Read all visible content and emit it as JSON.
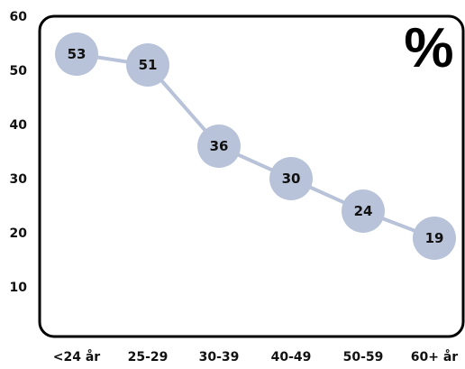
{
  "chart_data": {
    "type": "line",
    "categories": [
      "<24 år",
      "25-29",
      "30-39",
      "40-49",
      "50-59",
      "60+ år"
    ],
    "values": [
      53,
      51,
      36,
      30,
      24,
      19
    ],
    "unit_label": "%",
    "y_ticks": [
      "10",
      "20",
      "30",
      "40",
      "50",
      "60"
    ],
    "ylim": [
      0,
      60
    ],
    "grid": false,
    "colors": {
      "line": "#b8c3d9",
      "marker": "#b8c3d9",
      "frame": "#000000"
    }
  }
}
